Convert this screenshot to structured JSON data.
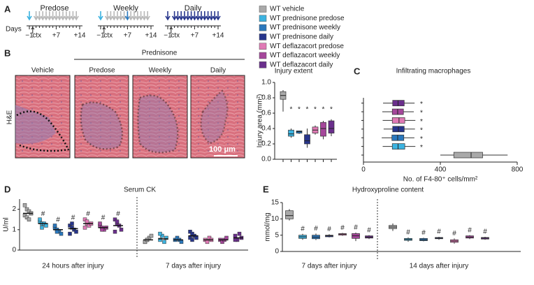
{
  "panel_labels": [
    "A",
    "B",
    "C",
    "D",
    "E"
  ],
  "timeline": {
    "axis_label": "Days",
    "tick_labels": [
      "−1",
      "ctx",
      "+7",
      "+14"
    ],
    "schemes": [
      "Predose",
      "Weekly",
      "Daily"
    ]
  },
  "histology": {
    "group_label": "Prednisone",
    "columns": [
      "Vehicle",
      "Predose",
      "Weekly",
      "Daily"
    ],
    "stain": "H&E",
    "scale_bar": "100 μm"
  },
  "legend": {
    "entries": [
      {
        "name": "WT vehicle",
        "color": "#a9a9a9"
      },
      {
        "name": "WT prednisone predose",
        "color": "#3cb3e0"
      },
      {
        "name": "WT prednisone weekly",
        "color": "#2a78bd"
      },
      {
        "name": "WT prednisone daily",
        "color": "#27358c"
      },
      {
        "name": "WT deflazacort predose",
        "color": "#e07ab5"
      },
      {
        "name": "WT deflazacort weekly",
        "color": "#a5479b"
      },
      {
        "name": "WT deflazacort daily",
        "color": "#6a2f8c"
      }
    ]
  },
  "chart_data": [
    {
      "type": "box",
      "title": "Injury extent",
      "y_label": "Injury area (mm²)",
      "ylim": [
        0,
        1.0
      ],
      "yticks": [
        {
          "value": 0,
          "label": "0.0"
        },
        0.2,
        0.4,
        0.6,
        0.8,
        {
          "value": 1.0,
          "label": "1.0"
        }
      ],
      "groups": [
        [
          {
            "min": 0.62,
            "q1": 0.78,
            "median": 0.83,
            "q3": 0.88,
            "max": 0.9
          },
          {
            "min": 0.28,
            "q1": 0.3,
            "median": 0.33,
            "q3": 0.38,
            "max": 0.4
          },
          {
            "min": 0.33,
            "q1": 0.34,
            "median": 0.36,
            "q3": 0.37,
            "max": 0.37
          },
          {
            "min": 0.15,
            "q1": 0.2,
            "median": 0.24,
            "q3": 0.32,
            "max": 0.4
          },
          {
            "min": 0.32,
            "q1": 0.34,
            "median": 0.38,
            "q3": 0.42,
            "max": 0.44
          },
          {
            "min": 0.26,
            "q1": 0.3,
            "median": 0.4,
            "q3": 0.48,
            "max": 0.5
          },
          {
            "min": 0.3,
            "q1": 0.34,
            "median": 0.4,
            "q3": 0.5,
            "max": 0.52
          }
        ]
      ],
      "annotations": [
        [
          null,
          "*",
          "*",
          "*",
          "*",
          "*",
          "*"
        ]
      ]
    },
    {
      "type": "hbox",
      "title": "Infiltrating macrophages",
      "x_label": "No. of F4-80⁺ cells/mm²",
      "xlim": [
        0,
        800
      ],
      "xticks": [
        0,
        400,
        800
      ],
      "boxes": [
        {
          "min": 400,
          "q1": 470,
          "median": 560,
          "q3": 620,
          "max": 750
        },
        {
          "min": 100,
          "q1": 150,
          "median": 180,
          "q3": 215,
          "max": 270
        },
        {
          "min": 95,
          "q1": 148,
          "median": 178,
          "q3": 210,
          "max": 265
        },
        {
          "min": 105,
          "q1": 152,
          "median": 182,
          "q3": 212,
          "max": 268
        },
        {
          "min": 100,
          "q1": 150,
          "median": 185,
          "q3": 215,
          "max": 270
        },
        {
          "min": 98,
          "q1": 150,
          "median": 178,
          "q3": 208,
          "max": 262
        },
        {
          "min": 102,
          "q1": 152,
          "median": 180,
          "q3": 212,
          "max": 266
        }
      ],
      "annotations": [
        null,
        "*",
        "*",
        "*",
        "*",
        "*",
        "*"
      ]
    },
    {
      "type": "dot",
      "title": "Serum CK",
      "y_label": "U/ml",
      "categories": [
        "24 hours after injury",
        "7 days after injury"
      ],
      "ylim": [
        0,
        2.5
      ],
      "yticks": [
        0,
        1,
        2
      ],
      "groups": [
        [
          {
            "values": [
              2.2,
              2.0,
              1.9,
              1.8,
              1.7,
              1.6,
              1.5,
              1.8
            ],
            "mean": 1.8
          },
          {
            "values": [
              1.4,
              1.3,
              1.3,
              1.2,
              1.5,
              1.1
            ],
            "mean": 1.3
          },
          {
            "values": [
              1.1,
              1.0,
              0.9,
              0.8,
              1.2,
              0.9
            ],
            "mean": 1.0
          },
          {
            "values": [
              1.2,
              1.1,
              1.0,
              0.9,
              0.8,
              1.3
            ],
            "mean": 1.05
          },
          {
            "values": [
              1.5,
              1.3,
              1.2,
              1.3,
              1.1,
              1.4
            ],
            "mean": 1.3
          },
          {
            "values": [
              1.2,
              1.1,
              1.0,
              1.1,
              1.3,
              1.0
            ],
            "mean": 1.1
          },
          {
            "values": [
              1.5,
              1.3,
              1.2,
              1.0,
              0.9,
              1.4
            ],
            "mean": 1.2
          }
        ],
        [
          {
            "values": [
              0.4,
              0.5,
              0.6,
              0.7,
              0.4,
              0.5
            ],
            "mean": 0.5
          },
          {
            "values": [
              0.5,
              0.7,
              0.4,
              0.6,
              0.8
            ],
            "mean": 0.55
          },
          {
            "values": [
              0.5,
              0.6,
              0.5,
              0.4
            ],
            "mean": 0.5
          },
          {
            "values": [
              0.9,
              0.8,
              0.7,
              0.6,
              0.6,
              0.5
            ],
            "mean": 0.7
          },
          {
            "values": [
              0.5,
              0.4,
              0.6,
              0.5
            ],
            "mean": 0.5
          },
          {
            "values": [
              0.5,
              0.4,
              0.5,
              0.6
            ],
            "mean": 0.5
          },
          {
            "values": [
              0.7,
              0.5,
              0.8,
              0.6,
              0.5
            ],
            "mean": 0.6
          }
        ]
      ],
      "annotations": [
        [
          null,
          "#",
          "#",
          "#",
          "#",
          "#",
          "#"
        ],
        [
          null,
          null,
          null,
          null,
          null,
          null,
          null
        ]
      ]
    },
    {
      "type": "box",
      "title": "Hydroxyproline content",
      "y_label": "mmol/mg",
      "categories": [
        "7 days after injury",
        "14 days after injury"
      ],
      "ylim": [
        0,
        15
      ],
      "yticks": [
        0,
        5,
        10,
        15
      ],
      "groups": [
        [
          {
            "min": 9.5,
            "q1": 10,
            "median": 11,
            "q3": 12.5,
            "max": 13
          },
          {
            "min": 3.6,
            "q1": 4,
            "median": 4.5,
            "q3": 5,
            "max": 5.4
          },
          {
            "min": 3.5,
            "q1": 3.9,
            "median": 4.4,
            "q3": 5,
            "max": 5.5
          },
          {
            "min": 4.3,
            "q1": 4.5,
            "median": 4.8,
            "q3": 5,
            "max": 5.3
          },
          {
            "min": 4.8,
            "q1": 5,
            "median": 5.3,
            "q3": 5.5,
            "max": 5.7
          },
          {
            "min": 3.2,
            "q1": 4,
            "median": 4.8,
            "q3": 5.5,
            "max": 5.8
          },
          {
            "min": 3.8,
            "q1": 4.1,
            "median": 4.4,
            "q3": 4.8,
            "max": 5.0
          }
        ],
        [
          {
            "min": 6.3,
            "q1": 7,
            "median": 7.5,
            "q3": 8,
            "max": 8.6
          },
          {
            "min": 3,
            "q1": 3.4,
            "median": 3.7,
            "q3": 4,
            "max": 4.3
          },
          {
            "min": 3.1,
            "q1": 3.3,
            "median": 3.6,
            "q3": 4,
            "max": 4.2
          },
          {
            "min": 3.6,
            "q1": 3.9,
            "median": 4.1,
            "q3": 4.3,
            "max": 4.5
          },
          {
            "min": 2.4,
            "q1": 2.8,
            "median": 3.2,
            "q3": 3.6,
            "max": 4
          },
          {
            "min": 3.8,
            "q1": 4.1,
            "median": 4.4,
            "q3": 4.8,
            "max": 5
          },
          {
            "min": 3.6,
            "q1": 3.8,
            "median": 4.1,
            "q3": 4.3,
            "max": 4.5
          }
        ]
      ],
      "annotations": [
        [
          null,
          "#",
          "#",
          "#",
          "#",
          "#",
          "#"
        ],
        [
          null,
          "#",
          "#",
          "#",
          "#",
          "#",
          "#"
        ]
      ]
    }
  ]
}
